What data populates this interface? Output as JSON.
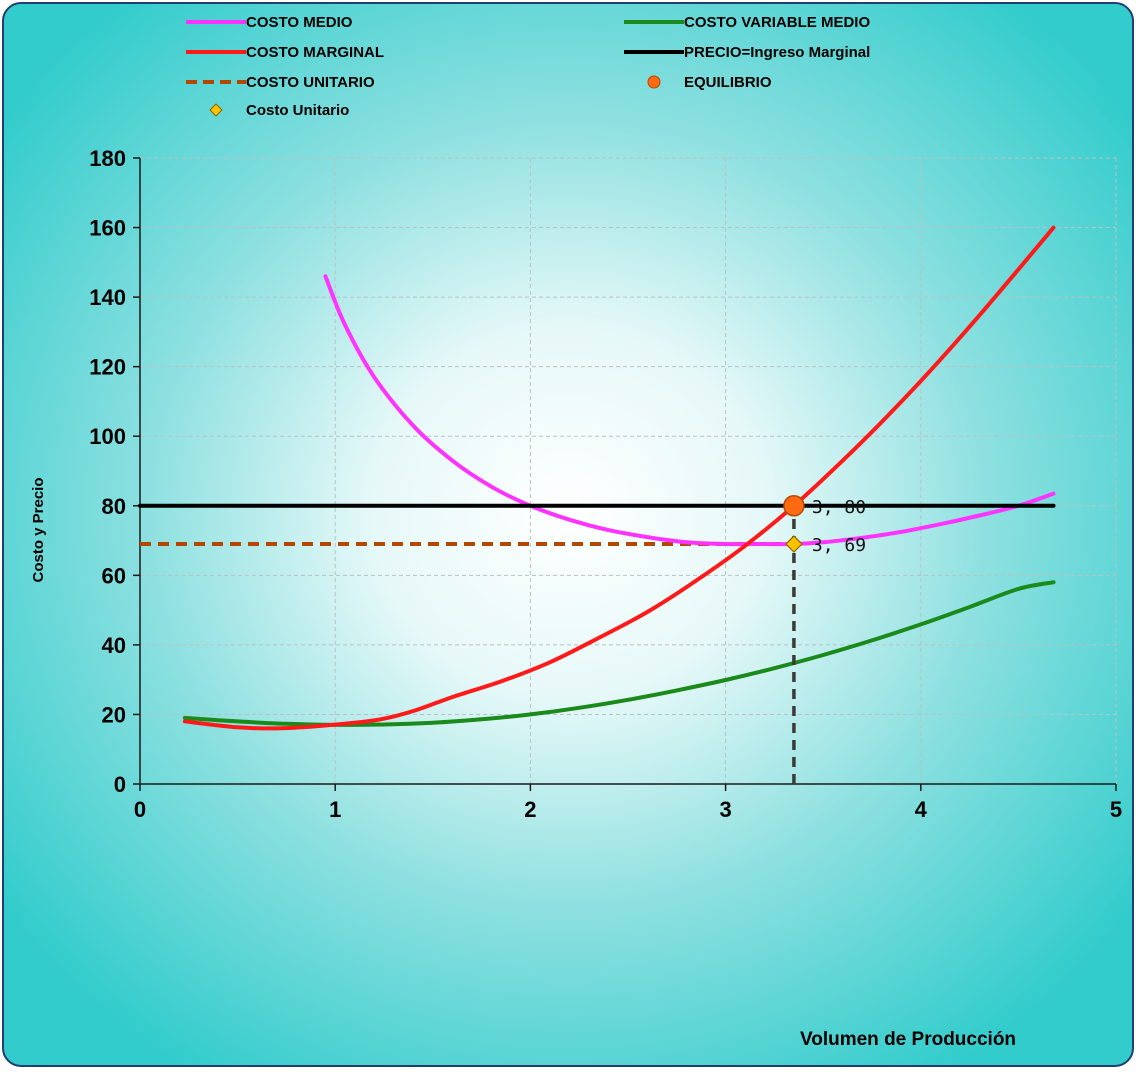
{
  "chart_data": {
    "type": "line",
    "xlabel": "Volumen de Producción",
    "ylabel": "Costo y Precio",
    "xlim": [
      0,
      5
    ],
    "ylim": [
      0,
      180
    ],
    "x_ticks": [
      "0",
      "1",
      "2",
      "3",
      "4",
      "5"
    ],
    "y_ticks": [
      "0",
      "20",
      "40",
      "60",
      "80",
      "100",
      "120",
      "140",
      "160",
      "180"
    ],
    "grid": true,
    "legend_position": "top",
    "colors": {
      "background_edge": "#33cccc",
      "background_center": "#ffffff",
      "costo_medio": "#ff33ff",
      "costo_marginal": "#ff1a1a",
      "costo_unitario_line": "#b34700",
      "costo_variable_medio": "#1a8a1a",
      "precio": "#000000",
      "equilibrio": "#ff6a13",
      "costo_unitario_marker": "#ffc000"
    },
    "legend": [
      {
        "label": "COSTO MEDIO",
        "series": "costo_medio",
        "style": "line"
      },
      {
        "label": "COSTO VARIABLE MEDIO",
        "series": "costo_variable_medio",
        "style": "line"
      },
      {
        "label": "COSTO MARGINAL",
        "series": "costo_marginal",
        "style": "line"
      },
      {
        "label": "PRECIO=Ingreso Marginal",
        "series": "precio",
        "style": "line"
      },
      {
        "label": "COSTO UNITARIO",
        "series": "costo_unitario_line",
        "style": "dashed"
      },
      {
        "label": "EQUILIBRIO",
        "series": "equilibrio",
        "style": "circle"
      },
      {
        "label": "Costo Unitario",
        "series": "costo_unitario_marker",
        "style": "diamond"
      }
    ],
    "series": [
      {
        "name": "COSTO MEDIO",
        "key": "costo_medio",
        "x": [
          0.95,
          1.05,
          1.2,
          1.4,
          1.6,
          1.8,
          2.0,
          2.2,
          2.4,
          2.6,
          2.8,
          3.0,
          3.2,
          3.35,
          3.5,
          3.7,
          3.9,
          4.1,
          4.3,
          4.5,
          4.68
        ],
        "y": [
          146,
          132,
          117,
          103,
          93,
          85.5,
          80,
          76,
          73,
          71,
          69.5,
          69,
          69,
          69,
          69.5,
          70.8,
          72.5,
          74.7,
          77.2,
          80,
          83.5
        ]
      },
      {
        "name": "COSTO VARIABLE MEDIO",
        "key": "costo_variable_medio",
        "x": [
          0.23,
          0.5,
          0.75,
          1.0,
          1.25,
          1.5,
          1.75,
          2.0,
          2.25,
          2.5,
          2.75,
          3.0,
          3.25,
          3.5,
          3.75,
          4.0,
          4.25,
          4.5,
          4.68
        ],
        "y": [
          19,
          18,
          17.3,
          17,
          17.1,
          17.6,
          18.6,
          20,
          21.9,
          24.2,
          26.9,
          29.9,
          33.3,
          37.1,
          41.3,
          45.9,
          50.9,
          56.1,
          58
        ]
      },
      {
        "name": "COSTO MARGINAL",
        "key": "costo_marginal",
        "x": [
          0.23,
          0.5,
          0.7,
          0.9,
          1.2,
          1.4,
          1.6,
          1.85,
          2.1,
          2.35,
          2.6,
          2.85,
          3.1,
          3.35,
          3.6,
          3.85,
          4.1,
          4.35,
          4.68
        ],
        "y": [
          18,
          16.3,
          16,
          16.6,
          18.3,
          21,
          25,
          29.5,
          35,
          42,
          49.5,
          58.5,
          68.5,
          80,
          93,
          107,
          122,
          138,
          160
        ]
      },
      {
        "name": "PRECIO=Ingreso Marginal",
        "key": "precio",
        "x": [
          0,
          4.68
        ],
        "y": [
          80,
          80
        ]
      },
      {
        "name": "COSTO UNITARIO",
        "key": "costo_unitario_line",
        "x": [
          0,
          3.35
        ],
        "y": [
          69,
          69
        ]
      }
    ],
    "points": [
      {
        "name": "EQUILIBRIO",
        "key": "equilibrio",
        "x": 3.35,
        "y": 80,
        "label": "3, 80"
      },
      {
        "name": "Costo Unitario",
        "key": "costo_unitario_marker",
        "x": 3.35,
        "y": 69,
        "label": "3, 69"
      }
    ],
    "drop_line": {
      "x": 3.35,
      "y_from": 0,
      "y_to": 80
    }
  }
}
